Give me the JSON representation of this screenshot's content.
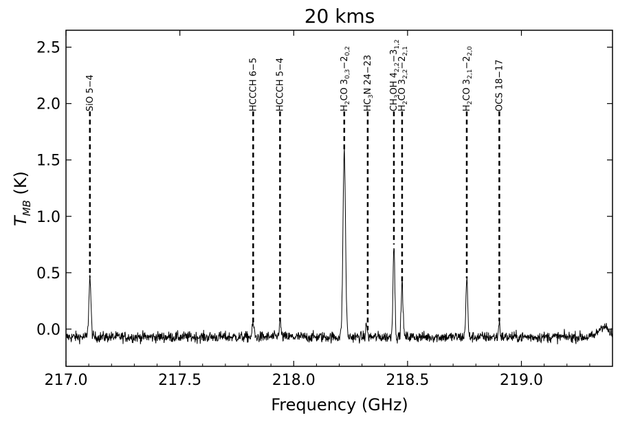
{
  "chart_data": {
    "type": "line",
    "title": "20 kms",
    "xlabel": "Frequency (GHz)",
    "ylabel_main": "T",
    "ylabel_sub": "MB",
    "ylabel_unit": " (K)",
    "xlim": [
      217.0,
      219.4
    ],
    "ylim": [
      -0.33,
      2.65
    ],
    "xticks": [
      217.0,
      217.5,
      218.0,
      218.5,
      219.0
    ],
    "xtick_labels": [
      "217.0",
      "217.5",
      "218.0",
      "218.5",
      "219.0"
    ],
    "yticks": [
      0.0,
      0.5,
      1.0,
      1.5,
      2.0,
      2.5
    ],
    "ytick_labels": [
      "0.0",
      "0.5",
      "1.0",
      "1.5",
      "2.0",
      "2.5"
    ],
    "grid": false,
    "legend": "none",
    "baseline": -0.07,
    "noise": 0.035,
    "peaks": [
      {
        "freq": 217.105,
        "height": 0.53,
        "width": 0.0045
      },
      {
        "freq": 217.822,
        "height": 0.12,
        "width": 0.004
      },
      {
        "freq": 217.94,
        "height": 0.14,
        "width": 0.004
      },
      {
        "freq": 218.222,
        "height": 1.65,
        "width": 0.0055
      },
      {
        "freq": 218.32,
        "height": 0.12,
        "width": 0.003
      },
      {
        "freq": 218.44,
        "height": 0.82,
        "width": 0.004
      },
      {
        "freq": 218.476,
        "height": 0.48,
        "width": 0.004
      },
      {
        "freq": 218.76,
        "height": 0.52,
        "width": 0.004
      },
      {
        "freq": 218.903,
        "height": 0.14,
        "width": 0.003
      },
      {
        "freq": 219.36,
        "height": 0.1,
        "width": 0.02
      }
    ],
    "line_markers": [
      {
        "freq": 217.105,
        "y_top": 1.93,
        "label": "SiO 5−4",
        "label_main": "SiO 5−4",
        "parts": []
      },
      {
        "freq": 217.822,
        "y_top": 1.93,
        "label": "HCCCH 6−5",
        "parts": [
          {
            "t": "HCCCH 6−5",
            "s": false
          }
        ]
      },
      {
        "freq": 217.94,
        "y_top": 1.93,
        "label": "HCCCH 5−4",
        "parts": [
          {
            "t": "HCCCH 5−4",
            "s": false
          }
        ]
      },
      {
        "freq": 218.222,
        "y_top": 1.93,
        "label": "H2CO 30,3−20,2",
        "parts": [
          {
            "t": "H",
            "s": false
          },
          {
            "t": "2",
            "s": true
          },
          {
            "t": "CO 3",
            "s": false
          },
          {
            "t": "0,3",
            "s": true
          },
          {
            "t": "−2",
            "s": false
          },
          {
            "t": "0,2",
            "s": true
          }
        ]
      },
      {
        "freq": 218.325,
        "y_top": 1.93,
        "label": "HC3N 24−23",
        "parts": [
          {
            "t": "HC",
            "s": false
          },
          {
            "t": "3",
            "s": true
          },
          {
            "t": "N 24−23",
            "s": false
          }
        ]
      },
      {
        "freq": 218.44,
        "y_top": 1.93,
        "label": "CH3OH 42,2−31,2",
        "parts": [
          {
            "t": "CH",
            "s": false
          },
          {
            "t": "3",
            "s": true
          },
          {
            "t": "OH 4",
            "s": false
          },
          {
            "t": "2,2",
            "s": true
          },
          {
            "t": "−3",
            "s": false
          },
          {
            "t": "1,2",
            "s": true
          }
        ]
      },
      {
        "freq": 218.476,
        "y_top": 1.93,
        "label": "H2CO 32,2−22,1",
        "parts": [
          {
            "t": "H",
            "s": false
          },
          {
            "t": "2",
            "s": true
          },
          {
            "t": "CO 3",
            "s": false
          },
          {
            "t": "2,2",
            "s": true
          },
          {
            "t": "−2",
            "s": false
          },
          {
            "t": "2,1",
            "s": true
          }
        ]
      },
      {
        "freq": 218.76,
        "y_top": 1.93,
        "label": "H2CO 32,1−22,0",
        "parts": [
          {
            "t": "H",
            "s": false
          },
          {
            "t": "2",
            "s": true
          },
          {
            "t": "CO 3",
            "s": false
          },
          {
            "t": "2,1",
            "s": true
          },
          {
            "t": "−2",
            "s": false
          },
          {
            "t": "2,0",
            "s": true
          }
        ]
      },
      {
        "freq": 218.903,
        "y_top": 1.93,
        "label": "OCS 18−17",
        "parts": [
          {
            "t": "OCS 18−17",
            "s": false
          }
        ]
      }
    ]
  }
}
